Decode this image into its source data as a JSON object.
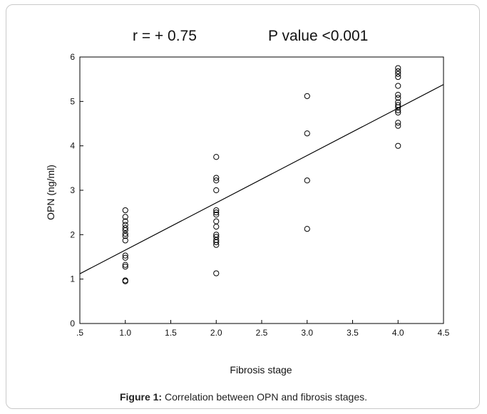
{
  "stats": {
    "r_text": "r = + 0.75",
    "p_text": "P value <0.001"
  },
  "caption": {
    "label": "Figure 1:",
    "text": " Correlation between OPN and fibrosis stages."
  },
  "chart_data": {
    "type": "scatter",
    "xlabel": "Fibrosis stage",
    "ylabel": "OPN (ng/ml)",
    "xlim": [
      0.5,
      4.5
    ],
    "ylim": [
      0,
      6
    ],
    "x_tick_labels": [
      ".5",
      "1.0",
      "1.5",
      "2.0",
      "2.5",
      "3.0",
      "3.5",
      "4.0",
      "4.5"
    ],
    "x_tick_values": [
      0.5,
      1.0,
      1.5,
      2.0,
      2.5,
      3.0,
      3.5,
      4.0,
      4.5
    ],
    "y_tick_labels": [
      "0",
      "1",
      "2",
      "3",
      "4",
      "5",
      "6"
    ],
    "y_tick_values": [
      0,
      1,
      2,
      3,
      4,
      5,
      6
    ],
    "grid": false,
    "points": [
      {
        "x": 1,
        "y": 2.55
      },
      {
        "x": 1,
        "y": 2.4
      },
      {
        "x": 1,
        "y": 2.3
      },
      {
        "x": 1,
        "y": 2.22
      },
      {
        "x": 1,
        "y": 2.15
      },
      {
        "x": 1,
        "y": 2.1
      },
      {
        "x": 1,
        "y": 2.02
      },
      {
        "x": 1,
        "y": 1.97
      },
      {
        "x": 1,
        "y": 1.87
      },
      {
        "x": 1,
        "y": 1.53
      },
      {
        "x": 1,
        "y": 1.48
      },
      {
        "x": 1,
        "y": 1.32
      },
      {
        "x": 1,
        "y": 1.28
      },
      {
        "x": 1,
        "y": 0.97
      },
      {
        "x": 1,
        "y": 0.95
      },
      {
        "x": 2,
        "y": 3.75
      },
      {
        "x": 2,
        "y": 3.28
      },
      {
        "x": 2,
        "y": 3.22
      },
      {
        "x": 2,
        "y": 3.0
      },
      {
        "x": 2,
        "y": 2.55
      },
      {
        "x": 2,
        "y": 2.5
      },
      {
        "x": 2,
        "y": 2.45
      },
      {
        "x": 2,
        "y": 2.3
      },
      {
        "x": 2,
        "y": 2.18
      },
      {
        "x": 2,
        "y": 2.0
      },
      {
        "x": 2,
        "y": 1.95
      },
      {
        "x": 2,
        "y": 1.88
      },
      {
        "x": 2,
        "y": 1.83
      },
      {
        "x": 2,
        "y": 1.77
      },
      {
        "x": 2,
        "y": 1.13
      },
      {
        "x": 3,
        "y": 5.12
      },
      {
        "x": 3,
        "y": 4.28
      },
      {
        "x": 3,
        "y": 3.22
      },
      {
        "x": 3,
        "y": 2.13
      },
      {
        "x": 4,
        "y": 5.75
      },
      {
        "x": 4,
        "y": 5.68
      },
      {
        "x": 4,
        "y": 5.62
      },
      {
        "x": 4,
        "y": 5.55
      },
      {
        "x": 4,
        "y": 5.35
      },
      {
        "x": 4,
        "y": 5.15
      },
      {
        "x": 4,
        "y": 5.08
      },
      {
        "x": 4,
        "y": 4.98
      },
      {
        "x": 4,
        "y": 4.92
      },
      {
        "x": 4,
        "y": 4.87
      },
      {
        "x": 4,
        "y": 4.8
      },
      {
        "x": 4,
        "y": 4.75
      },
      {
        "x": 4,
        "y": 4.52
      },
      {
        "x": 4,
        "y": 4.45
      },
      {
        "x": 4,
        "y": 4.0
      }
    ],
    "fit_line": {
      "x": [
        0.5,
        4.5
      ],
      "y": [
        1.12,
        5.38
      ]
    }
  }
}
